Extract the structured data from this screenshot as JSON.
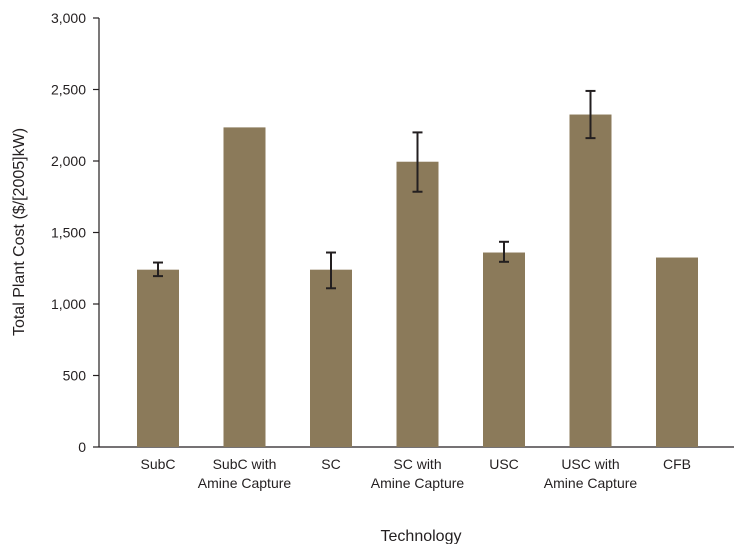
{
  "chart_data": {
    "type": "bar",
    "title": "",
    "xlabel": "Technology",
    "ylabel": "Total Plant Cost ($/[2005]kW)",
    "ylim": [
      0,
      3000
    ],
    "yticks": [
      0,
      500,
      1000,
      1500,
      2000,
      2500,
      3000
    ],
    "ytick_labels": [
      "0",
      "500",
      "1,000",
      "1,500",
      "2,000",
      "2,500",
      "3,000"
    ],
    "grid": false,
    "legend": "none",
    "bar_color": "#8b7a5a",
    "error_bar_color": "#231f20",
    "categories": [
      [
        "SubC"
      ],
      [
        "SubC with",
        "Amine Capture"
      ],
      [
        "SC"
      ],
      [
        "SC with",
        "Amine Capture"
      ],
      [
        "USC"
      ],
      [
        "USC with",
        "Amine Capture"
      ],
      [
        "CFB"
      ]
    ],
    "values": [
      1240,
      2235,
      1240,
      1995,
      1360,
      2325,
      1325
    ],
    "error_low": [
      1195,
      null,
      1110,
      1785,
      1295,
      2160,
      null
    ],
    "error_high": [
      1290,
      null,
      1360,
      2200,
      1435,
      2490,
      null
    ]
  }
}
